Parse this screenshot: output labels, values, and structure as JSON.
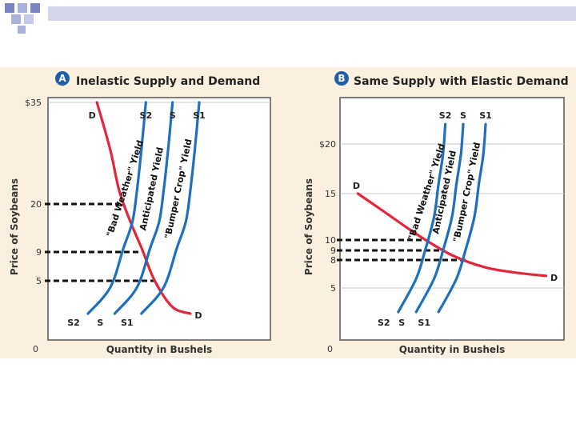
{
  "chart_data": [
    {
      "type": "line",
      "badge": "A",
      "title": "Inelastic Supply and Demand",
      "xlabel": "Quantity in Bushels",
      "ylabel": "Price of Soybeans",
      "origin_label": "0",
      "y_ticks": [
        {
          "value": 35,
          "label": "$35"
        },
        {
          "value": 20,
          "label": "20"
        },
        {
          "value": 9,
          "label": "9"
        },
        {
          "value": 5,
          "label": "5"
        }
      ],
      "dashed_levels": [
        20,
        9,
        5
      ],
      "grid": true,
      "series": [
        {
          "id": "D",
          "label_top": "D",
          "label_bottom": "D",
          "color": "#e3263a",
          "points": [
            [
              22,
              35
            ],
            [
              28,
              28
            ],
            [
              32,
              22
            ],
            [
              37,
              16
            ],
            [
              42,
              10
            ],
            [
              48,
              5
            ],
            [
              56,
              1
            ],
            [
              64,
              -4
            ]
          ]
        },
        {
          "id": "S2",
          "label_top": "S2",
          "label_bottom": "S2",
          "color": "#1f6fbf",
          "annotation": "\"Bad Weather\" Yield",
          "points": [
            [
              18,
              -4
            ],
            [
              28,
              4
            ],
            [
              34,
              10
            ],
            [
              38,
              16
            ],
            [
              40,
              22
            ],
            [
              42,
              28
            ],
            [
              44,
              35
            ]
          ]
        },
        {
          "id": "S",
          "label_top": "S",
          "label_bottom": "S",
          "color": "#1f6fbf",
          "annotation": "Anticipated Yield",
          "points": [
            [
              30,
              -4
            ],
            [
              40,
              4
            ],
            [
              46,
              10
            ],
            [
              50,
              16
            ],
            [
              52,
              22
            ],
            [
              54,
              28
            ],
            [
              56,
              35
            ]
          ]
        },
        {
          "id": "S1",
          "label_top": "S1",
          "label_bottom": "S1",
          "color": "#1f6fbf",
          "annotation": "\"Bumper Crop\" Yield",
          "points": [
            [
              42,
              -4
            ],
            [
              52,
              4
            ],
            [
              58,
              10
            ],
            [
              62,
              16
            ],
            [
              64,
              22
            ],
            [
              66,
              28
            ],
            [
              68,
              35
            ]
          ]
        }
      ]
    },
    {
      "type": "line",
      "badge": "B",
      "title": "Same Supply with Elastic Demand",
      "xlabel": "Quantity in Bushels",
      "ylabel": "Price of Soybeans",
      "origin_label": "0",
      "y_ticks": [
        {
          "value": 20,
          "label": "$20"
        },
        {
          "value": 15,
          "label": "15"
        },
        {
          "value": 10,
          "label": "10"
        },
        {
          "value": 9,
          "label": "9"
        },
        {
          "value": 8,
          "label": "8"
        },
        {
          "value": 5,
          "label": "5"
        }
      ],
      "dashed_levels": [
        10,
        9,
        8
      ],
      "grid": true,
      "series": [
        {
          "id": "D",
          "label_top": "D",
          "label_bottom": "D",
          "color": "#e3263a",
          "points": [
            [
              8,
              15
            ],
            [
              20,
              13
            ],
            [
              35,
              10.5
            ],
            [
              50,
              8.5
            ],
            [
              65,
              7.2
            ],
            [
              80,
              6.6
            ],
            [
              92,
              6.3
            ]
          ]
        },
        {
          "id": "S2",
          "label_top": "S2",
          "label_bottom": "S2",
          "color": "#1f6fbf",
          "annotation": "\"Bad Weather\" Yield",
          "points": [
            [
              26,
              2
            ],
            [
              34,
              6
            ],
            [
              38,
              9
            ],
            [
              42,
              12.5
            ],
            [
              44,
              16
            ],
            [
              46,
              19
            ],
            [
              47,
              22
            ]
          ]
        },
        {
          "id": "S",
          "label_top": "S",
          "label_bottom": "S",
          "color": "#1f6fbf",
          "annotation": "Anticipated Yield",
          "points": [
            [
              34,
              2
            ],
            [
              42,
              6
            ],
            [
              46,
              9
            ],
            [
              50,
              12.5
            ],
            [
              52,
              16
            ],
            [
              54,
              19
            ],
            [
              55,
              22
            ]
          ]
        },
        {
          "id": "S1",
          "label_top": "S1",
          "label_bottom": "S1",
          "color": "#1f6fbf",
          "annotation": "\"Bumper Crop\" Yield",
          "points": [
            [
              44,
              2
            ],
            [
              52,
              6
            ],
            [
              56,
              9
            ],
            [
              60,
              12.5
            ],
            [
              62,
              16
            ],
            [
              64,
              19
            ],
            [
              65,
              22
            ]
          ]
        }
      ]
    }
  ]
}
